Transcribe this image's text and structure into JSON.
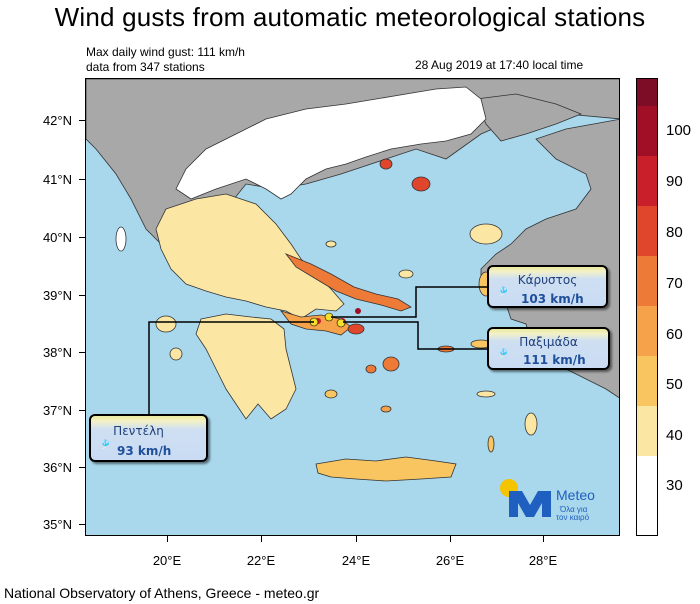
{
  "title": "Wind gusts from automatic meteorological stations",
  "info": {
    "max_gust": "Max daily wind gust: 111 km/h",
    "stations": "data from 347 stations",
    "datetime": "28 Aug 2019 at 17:40 local time"
  },
  "axes": {
    "lat_labels": [
      "42°N",
      "41°N",
      "40°N",
      "39°N",
      "38°N",
      "37°N",
      "36°N",
      "35°N"
    ],
    "lon_labels": [
      "20°E",
      "22°E",
      "24°E",
      "26°E",
      "28°E"
    ]
  },
  "colorbar": {
    "labels": [
      "100",
      "90",
      "80",
      "70",
      "60",
      "50",
      "40",
      "30"
    ],
    "colors": [
      "#ffffff",
      "#fbe7a3",
      "#f8c560",
      "#f5a24a",
      "#ee7a38",
      "#e0462c",
      "#c81f2a",
      "#a00f26",
      "#7d0c26"
    ]
  },
  "stations": [
    {
      "name": "Κάρυστος",
      "value": "103 km/h"
    },
    {
      "name": "Παξιμάδα",
      "value": "111 km/h"
    },
    {
      "name": "Πεντέλη",
      "value": "93 km/h"
    }
  ],
  "colors": {
    "sea": "#a9d7ec",
    "land_foreign": "#a8a8a8",
    "accent_logo": "#1f5fbf",
    "logo_sun": "#f4c400"
  },
  "logo": {
    "brand": "Meteo",
    "tagline_1": "Όλα για",
    "tagline_2": "τον καιρό"
  },
  "footer": "National Observatory of Athens, Greece - meteo.gr"
}
